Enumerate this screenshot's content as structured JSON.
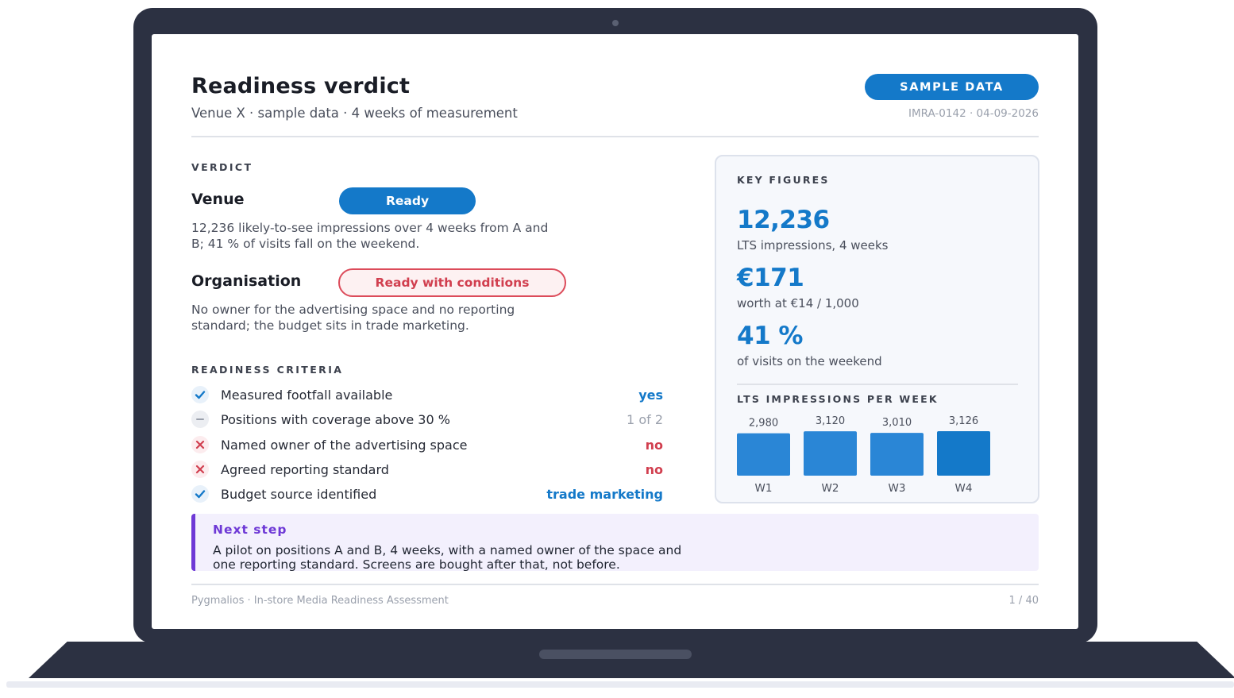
{
  "header": {
    "title": "Readiness verdict",
    "subtitle": "Venue X · sample data · 4 weeks of measurement",
    "badge": "SAMPLE DATA",
    "doc_id": "IMRA-0142 · 04-09-2026"
  },
  "verdict": {
    "section_label": "VERDICT",
    "venue": {
      "name": "Venue",
      "status": "Ready",
      "description": "12,236 likely-to-see impressions over 4 weeks from A and B; 41 % of visits fall on the weekend."
    },
    "organisation": {
      "name": "Organisation",
      "status": "Ready with conditions",
      "description": "No owner for the advertising space and no reporting standard; the budget sits in trade marketing."
    }
  },
  "criteria": {
    "section_label": "READINESS CRITERIA",
    "items": [
      {
        "label": "Measured footfall available",
        "value": "yes",
        "state": "ok",
        "icon": "check-icon"
      },
      {
        "label": "Positions with coverage above 30 %",
        "value": "1 of 2",
        "state": "partial",
        "icon": "dash-icon"
      },
      {
        "label": "Named owner of the advertising space",
        "value": "no",
        "state": "fail",
        "icon": "cross-icon"
      },
      {
        "label": "Agreed reporting standard",
        "value": "no",
        "state": "fail",
        "icon": "cross-icon"
      },
      {
        "label": "Budget source identified",
        "value": "trade marketing",
        "state": "ok",
        "icon": "check-icon"
      }
    ]
  },
  "key_figures": {
    "label": "KEY FIGURES",
    "impressions": {
      "value": "12,236",
      "caption": "LTS impressions, 4 weeks"
    },
    "worth": {
      "value": "€171",
      "caption": "worth at €14 / 1,000"
    },
    "weekend": {
      "value": "41 %",
      "caption": "of visits on the weekend"
    },
    "chart_title": "LTS IMPRESSIONS PER WEEK"
  },
  "chart_data": {
    "type": "bar",
    "title": "LTS IMPRESSIONS PER WEEK",
    "categories": [
      "W1",
      "W2",
      "W3",
      "W4"
    ],
    "values": [
      2980,
      3120,
      3010,
      3126
    ],
    "value_labels": [
      "2,980",
      "3,120",
      "3,010",
      "3,126"
    ],
    "colors": [
      "#2a86d6",
      "#2a86d6",
      "#2a86d6",
      "#1479c9"
    ],
    "grid": false
  },
  "next_step": {
    "title": "Next step",
    "text": "A pilot on positions A and B, 4 weeks, with a named owner of the space and one reporting standard. Screens are bought after that, not before."
  },
  "footer": {
    "left": "Pygmalios · In-store Media Readiness Assessment",
    "right": "1 / 40"
  },
  "colors": {
    "accent": "#1479c9",
    "danger": "#d13f4f",
    "next_step": "#6e39d6"
  }
}
